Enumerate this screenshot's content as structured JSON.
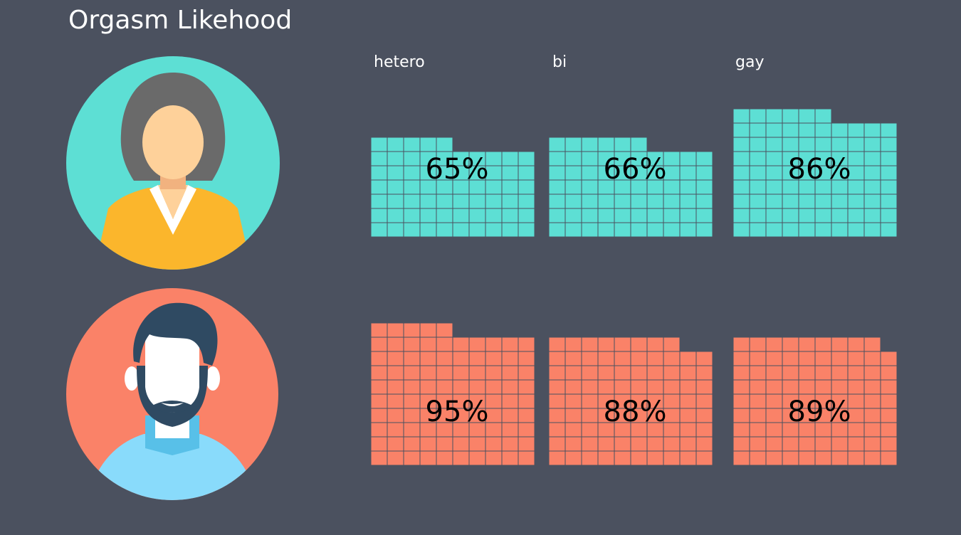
{
  "title": "Orgasm Likehood",
  "colors": {
    "background": "#4b515f",
    "female": "#5ddfd4",
    "male": "#fa8268",
    "grid_line": "#4b515f",
    "value_text": "#000000"
  },
  "avatars": [
    {
      "icon": "female-avatar-icon",
      "color": "#5ddfd4"
    },
    {
      "icon": "male-avatar-icon",
      "color": "#fa8268"
    }
  ],
  "chart_data": {
    "type": "waffle",
    "title": "Orgasm Likehood",
    "grid": {
      "rows": 10,
      "cols": 10
    },
    "categories": [
      "hetero",
      "bi",
      "gay"
    ],
    "series": [
      {
        "icon": "female-avatar-icon",
        "color": "#5ddfd4",
        "values": [
          65,
          66,
          86
        ]
      },
      {
        "icon": "male-avatar-icon",
        "color": "#fa8268",
        "values": [
          95,
          88,
          89
        ]
      }
    ],
    "labels": [
      [
        "65%",
        "66%",
        "86%"
      ],
      [
        "95%",
        "88%",
        "89%"
      ]
    ]
  }
}
